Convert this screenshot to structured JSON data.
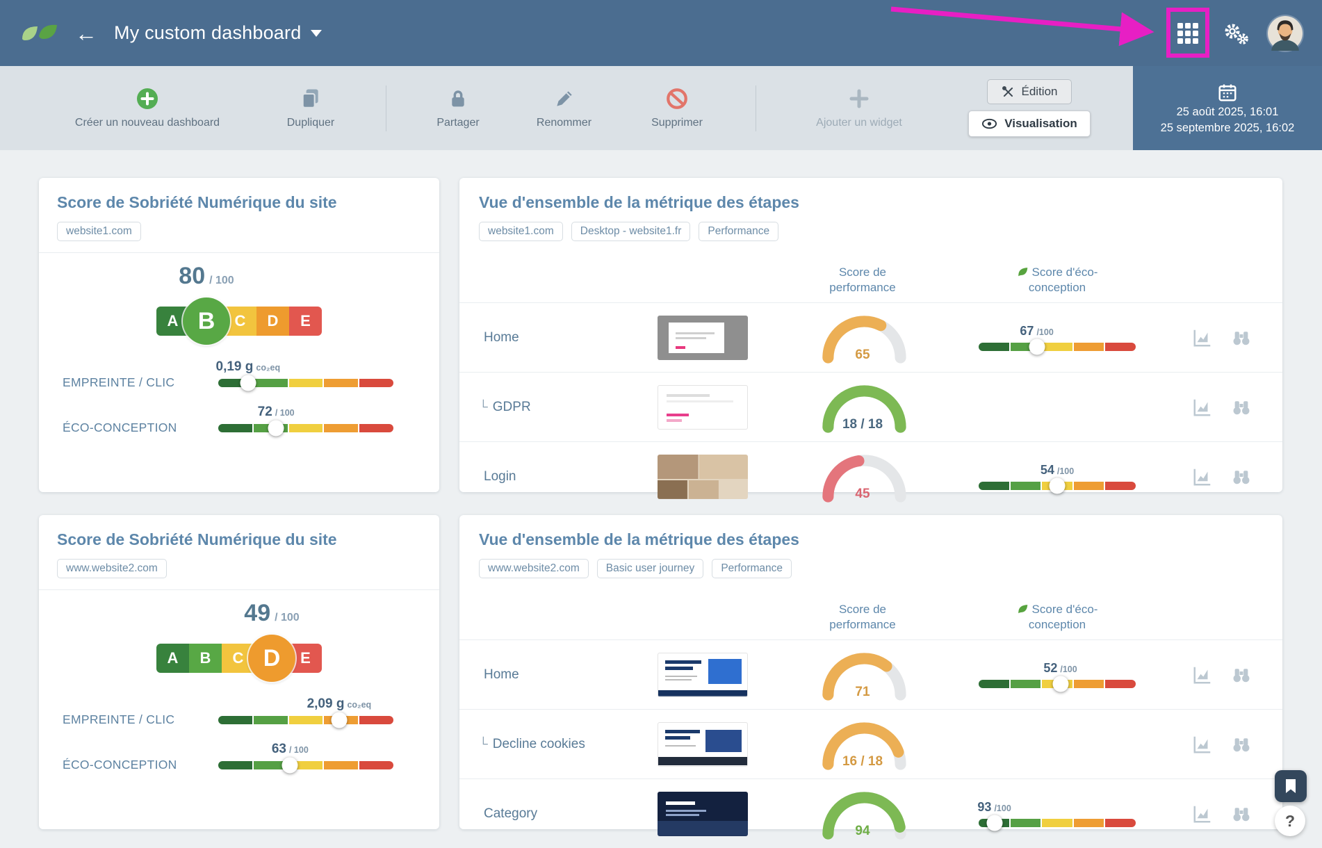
{
  "navbar": {
    "title": "My custom dashboard"
  },
  "toolbar": {
    "create_label": "Créer un nouveau dashboard",
    "duplicate_label": "Dupliquer",
    "share_label": "Partager",
    "rename_label": "Renommer",
    "delete_label": "Supprimer",
    "add_widget_label": "Ajouter un widget",
    "edition_label": "Édition",
    "visualisation_label": "Visualisation"
  },
  "date_range": {
    "start": "25 août 2025, 16:01",
    "end": "25 septembre 2025, 16:02"
  },
  "grade_letters": [
    "A",
    "B",
    "C",
    "D",
    "E"
  ],
  "colors": {
    "slider_segments": [
      "#2d6e35",
      "#55a044",
      "#f0cf3f",
      "#ee9d33",
      "#d94a3d"
    ],
    "grades": {
      "A": "#38823d",
      "B": "#58a845",
      "C": "#f2c43e",
      "D": "#ee9b2e",
      "E": "#e2574f"
    },
    "annotation": "#e71fc4"
  },
  "sobriety_cards": [
    {
      "title": "Score de Sobriété Numérique du site",
      "tag": "website1.com",
      "score": "80",
      "score_suffix": "/ 100",
      "grade": "B",
      "rows": [
        {
          "label": "EMPREINTE / CLIC",
          "slider": {
            "value": "0,19 g",
            "unit": "co₂eq",
            "pos": 0.17
          }
        },
        {
          "label": "ÉCO-CONCEPTION",
          "slider": {
            "value": "72",
            "suffix": "/ 100",
            "pos": 0.33
          }
        }
      ]
    },
    {
      "title": "Score de Sobriété Numérique du site",
      "tag": "www.website2.com",
      "score": "49",
      "score_suffix": "/ 100",
      "grade": "D",
      "rows": [
        {
          "label": "EMPREINTE / CLIC",
          "slider": {
            "value": "2,09 g",
            "unit": "co₂eq",
            "pos": 0.69
          }
        },
        {
          "label": "ÉCO-CONCEPTION",
          "slider": {
            "value": "63",
            "suffix": "/ 100",
            "pos": 0.41
          }
        }
      ]
    }
  ],
  "metric_cards": [
    {
      "title": "Vue d'ensemble de la métrique des étapes",
      "tags": [
        "website1.com",
        "Desktop - website1.fr",
        "Performance"
      ],
      "col_performance": "Score de performance",
      "col_eco": "Score d'éco-conception",
      "rows": [
        {
          "prefix": "",
          "name": "Home",
          "gauge": {
            "display": "65",
            "value": 65,
            "max": 100,
            "color": "#ecaf55",
            "text": "#d49a43"
          },
          "eco": {
            "value": "67",
            "suffix": "/100",
            "pos": 0.37
          }
        },
        {
          "prefix": "└",
          "name": "GDPR",
          "gauge": {
            "display": "18 / 18",
            "value": 18,
            "max": 18,
            "color": "#7db954",
            "text": "#4a6880"
          }
        },
        {
          "prefix": "",
          "name": "Login",
          "gauge": {
            "display": "45",
            "value": 45,
            "max": 100,
            "color": "#e4757c",
            "text": "#d96470"
          },
          "eco": {
            "value": "54",
            "suffix": "/100",
            "pos": 0.5
          }
        }
      ]
    },
    {
      "title": "Vue d'ensemble de la métrique des étapes",
      "tags": [
        "www.website2.com",
        "Basic user journey",
        "Performance"
      ],
      "col_performance": "Score de performance",
      "col_eco": "Score d'éco-conception",
      "rows": [
        {
          "prefix": "",
          "name": "Home",
          "gauge": {
            "display": "71",
            "value": 71,
            "max": 100,
            "color": "#ecaf55",
            "text": "#d49a43"
          },
          "eco": {
            "value": "52",
            "suffix": "/100",
            "pos": 0.52
          }
        },
        {
          "prefix": "└",
          "name": "Decline cookies",
          "gauge": {
            "display": "16 / 18",
            "value": 16,
            "max": 18,
            "color": "#ecaf55",
            "text": "#d49a43"
          }
        },
        {
          "prefix": "",
          "name": "Category",
          "gauge": {
            "display": "94",
            "value": 94,
            "max": 100,
            "color": "#7db954",
            "text": "#6fae47"
          },
          "eco": {
            "value": "93",
            "suffix": "/100",
            "pos": 0.1
          }
        }
      ]
    }
  ],
  "floating": {
    "help_label": "?"
  }
}
